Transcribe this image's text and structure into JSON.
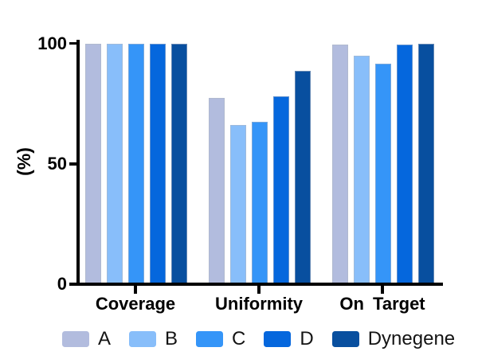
{
  "axis": {
    "ylabel": "(%)",
    "yticks": [
      0,
      50,
      100
    ],
    "ylim": [
      0,
      100
    ]
  },
  "chart_data": {
    "type": "bar",
    "title": "",
    "xlabel": "",
    "ylabel": "(%)",
    "ylim": [
      0,
      100
    ],
    "yticks": [
      0,
      50,
      100
    ],
    "grid": false,
    "legend_position": "bottom",
    "categories": [
      "Coverage",
      "Uniformity",
      "On Target"
    ],
    "series": [
      {
        "name": "A",
        "color": "#b2bcde",
        "values": [
          100,
          77.5,
          99.5
        ]
      },
      {
        "name": "B",
        "color": "#88befa",
        "values": [
          100,
          66,
          95
        ]
      },
      {
        "name": "C",
        "color": "#3595f8",
        "values": [
          100,
          67.5,
          91.5
        ]
      },
      {
        "name": "D",
        "color": "#0567dd",
        "values": [
          100,
          78,
          99.5
        ]
      },
      {
        "name": "Dynegene",
        "color": "#084f9f",
        "values": [
          100,
          88.5,
          100
        ]
      }
    ]
  },
  "legend": {
    "entries": [
      "A",
      "B",
      "C",
      "D",
      "Dynegene"
    ]
  }
}
